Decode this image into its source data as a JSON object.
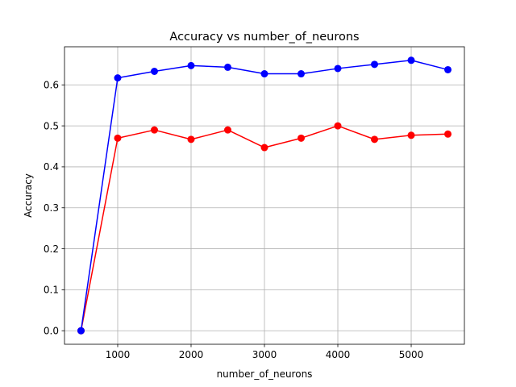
{
  "chart_data": {
    "type": "line",
    "title": "Accuracy vs number_of_neurons",
    "xlabel": "number_of_neurons",
    "ylabel": "Accuracy",
    "x": [
      500,
      1000,
      1500,
      2000,
      2500,
      3000,
      3500,
      4000,
      4500,
      5000,
      5500
    ],
    "xlim": [
      275,
      5725
    ],
    "ylim": [
      -0.033,
      0.693
    ],
    "xticks": [
      1000,
      2000,
      3000,
      4000,
      5000
    ],
    "yticks": [
      0.0,
      0.1,
      0.2,
      0.3,
      0.4,
      0.5,
      0.6
    ],
    "xtick_labels": [
      "1000",
      "2000",
      "3000",
      "4000",
      "5000"
    ],
    "ytick_labels": [
      "0.0",
      "0.1",
      "0.2",
      "0.3",
      "0.4",
      "0.5",
      "0.6"
    ],
    "grid": true,
    "legend": false,
    "series": [
      {
        "color": "#ff0000",
        "values": [
          0.0,
          0.47,
          0.49,
          0.467,
          0.49,
          0.447,
          0.47,
          0.5,
          0.467,
          0.477,
          0.48
        ]
      },
      {
        "color": "#0000ff",
        "values": [
          0.0,
          0.617,
          0.633,
          0.647,
          0.643,
          0.627,
          0.627,
          0.64,
          0.65,
          0.66,
          0.637
        ]
      }
    ]
  }
}
